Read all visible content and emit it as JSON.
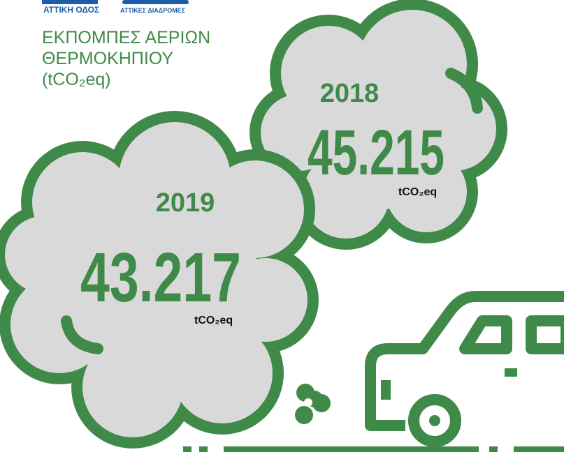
{
  "logos": {
    "left": "ΑΤΤΙΚΗ ΟΔΟΣ",
    "right": "ΑΤΤΙΚΕΣ ΔΙΑΔΡΟΜΕΣ"
  },
  "header": {
    "title_lines": [
      "ΕΚΠΟΜΠΕΣ ΑΕΡΙΩΝ",
      "ΘΕΡΜΟΚΗΠΙΟΥ",
      "(tCO₂eq)"
    ]
  },
  "clouds": [
    {
      "year": "2018",
      "value": "45.215",
      "unit": "tCO₂eq"
    },
    {
      "year": "2019",
      "value": "43.217",
      "unit": "tCO₂eq"
    }
  ]
}
